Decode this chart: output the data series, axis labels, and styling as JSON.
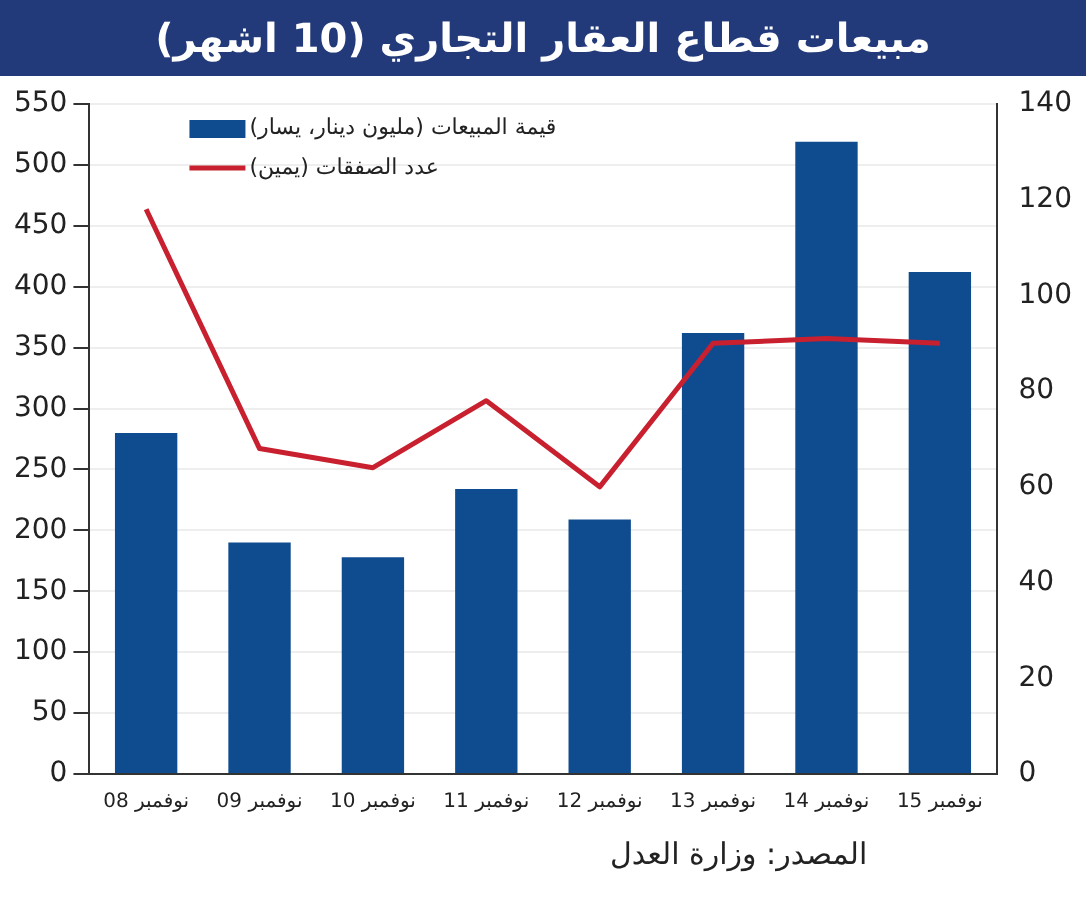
{
  "chart_data": {
    "type": "bar",
    "title": "مبيعات قطاع العقار التجاري (10 اشهر)",
    "categories": [
      "نوفمبر 08",
      "نوفمبر 09",
      "نوفمبر 10",
      "نوفمبر 11",
      "نوفمبر 12",
      "نوفمبر 13",
      "نوفمبر 14",
      "نوفمبر 15"
    ],
    "series": [
      {
        "name": "قيمة المبيعات (مليون دينار، يسار)",
        "color": "#0f4c8f",
        "values": [
          280,
          190,
          178,
          234,
          209,
          362,
          519,
          412
        ]
      },
      {
        "name": "عدد الصفقات (يمين)",
        "type": "line",
        "axis": "y2",
        "color": "#c8202f",
        "values": [
          118,
          68,
          64,
          78,
          60,
          90,
          91,
          90
        ]
      }
    ],
    "ylim": [
      0,
      550
    ],
    "yticks": [
      0,
      50,
      100,
      150,
      200,
      250,
      300,
      350,
      400,
      450,
      500,
      550
    ],
    "y2lim": [
      0,
      140
    ],
    "y2ticks": [
      0,
      20,
      40,
      60,
      80,
      100,
      120,
      140
    ],
    "grid": "y",
    "legend": "top left",
    "marker": "none",
    "annotations": [
      "المصدر: وزارة العدل"
    ]
  }
}
